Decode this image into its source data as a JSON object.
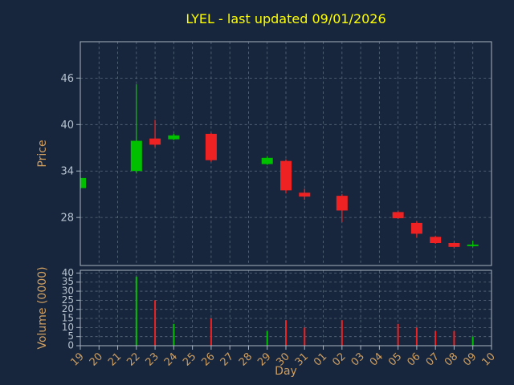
{
  "chart_data": {
    "type": "candlestick",
    "title": "LYEL - last updated 09/01/2026",
    "xlabel": "Day",
    "price_axis": {
      "label": "Price",
      "ticks": [
        28,
        34,
        40,
        46
      ],
      "ylim": [
        21.8,
        50.7
      ]
    },
    "volume_axis": {
      "label": "Volume (0000)",
      "ticks": [
        0,
        5,
        10,
        15,
        20,
        25,
        30,
        35,
        40
      ],
      "ylim": [
        0,
        41.5
      ]
    },
    "x_ticklabels": [
      "19",
      "20",
      "21",
      "22",
      "23",
      "24",
      "25",
      "26",
      "27",
      "28",
      "29",
      "30",
      "31",
      "01",
      "02",
      "03",
      "04",
      "05",
      "06",
      "07",
      "08",
      "09",
      "10"
    ],
    "grid": true,
    "legend": "none",
    "colors": {
      "background": "#17263c",
      "up": "#00c000",
      "down": "#ee2222",
      "grid": "#9fb0c0",
      "spine": "#a8b4c2",
      "title": "#ffff00",
      "axis_label": "#cf9f62",
      "y_tick_label": "#b7c3d0",
      "x_tick_label": "#cf9f62"
    },
    "candles": [
      {
        "day": "19",
        "x": 0,
        "open": 31.8,
        "high": 33.2,
        "low": 31.7,
        "close": 33.1
      },
      {
        "day": "22",
        "x": 3,
        "open": 34.0,
        "high": 45.2,
        "low": 33.7,
        "close": 37.9
      },
      {
        "day": "23",
        "x": 4,
        "open": 38.2,
        "high": 40.6,
        "low": 37.1,
        "close": 37.4
      },
      {
        "day": "24",
        "x": 5,
        "open": 38.1,
        "high": 38.8,
        "low": 38.0,
        "close": 38.6
      },
      {
        "day": "26",
        "x": 7,
        "open": 38.8,
        "high": 38.9,
        "low": 35.2,
        "close": 35.4
      },
      {
        "day": "29",
        "x": 10,
        "open": 34.9,
        "high": 35.9,
        "low": 34.8,
        "close": 35.7
      },
      {
        "day": "30",
        "x": 11,
        "open": 35.3,
        "high": 35.5,
        "low": 31.1,
        "close": 31.5
      },
      {
        "day": "31",
        "x": 12,
        "open": 31.2,
        "high": 31.7,
        "low": 30.3,
        "close": 30.7
      },
      {
        "day": "02",
        "x": 14,
        "open": 30.8,
        "high": 31.0,
        "low": 27.4,
        "close": 28.9
      },
      {
        "day": "05",
        "x": 17,
        "open": 28.7,
        "high": 28.9,
        "low": 27.8,
        "close": 27.9
      },
      {
        "day": "06",
        "x": 18,
        "open": 27.3,
        "high": 27.5,
        "low": 25.4,
        "close": 25.9
      },
      {
        "day": "07",
        "x": 19,
        "open": 25.5,
        "high": 25.6,
        "low": 24.6,
        "close": 24.7
      },
      {
        "day": "08",
        "x": 20,
        "open": 24.7,
        "high": 24.8,
        "low": 24.0,
        "close": 24.2
      },
      {
        "day": "09",
        "x": 21,
        "open": 24.3,
        "high": 25.0,
        "low": 24.2,
        "close": 24.5
      }
    ],
    "volumes": [
      {
        "day": "22",
        "x": 3,
        "value": 38,
        "direction": "up"
      },
      {
        "day": "23",
        "x": 4,
        "value": 25,
        "direction": "down"
      },
      {
        "day": "24",
        "x": 5,
        "value": 12,
        "direction": "up"
      },
      {
        "day": "26",
        "x": 7,
        "value": 15,
        "direction": "down"
      },
      {
        "day": "29",
        "x": 10,
        "value": 8,
        "direction": "up"
      },
      {
        "day": "30",
        "x": 11,
        "value": 14,
        "direction": "down"
      },
      {
        "day": "31",
        "x": 12,
        "value": 10,
        "direction": "down"
      },
      {
        "day": "02",
        "x": 14,
        "value": 14,
        "direction": "down"
      },
      {
        "day": "05",
        "x": 17,
        "value": 12,
        "direction": "down"
      },
      {
        "day": "06",
        "x": 18,
        "value": 10,
        "direction": "down"
      },
      {
        "day": "07",
        "x": 19,
        "value": 8,
        "direction": "down"
      },
      {
        "day": "08",
        "x": 20,
        "value": 8,
        "direction": "down"
      },
      {
        "day": "09",
        "x": 21,
        "value": 5,
        "direction": "up"
      }
    ]
  }
}
